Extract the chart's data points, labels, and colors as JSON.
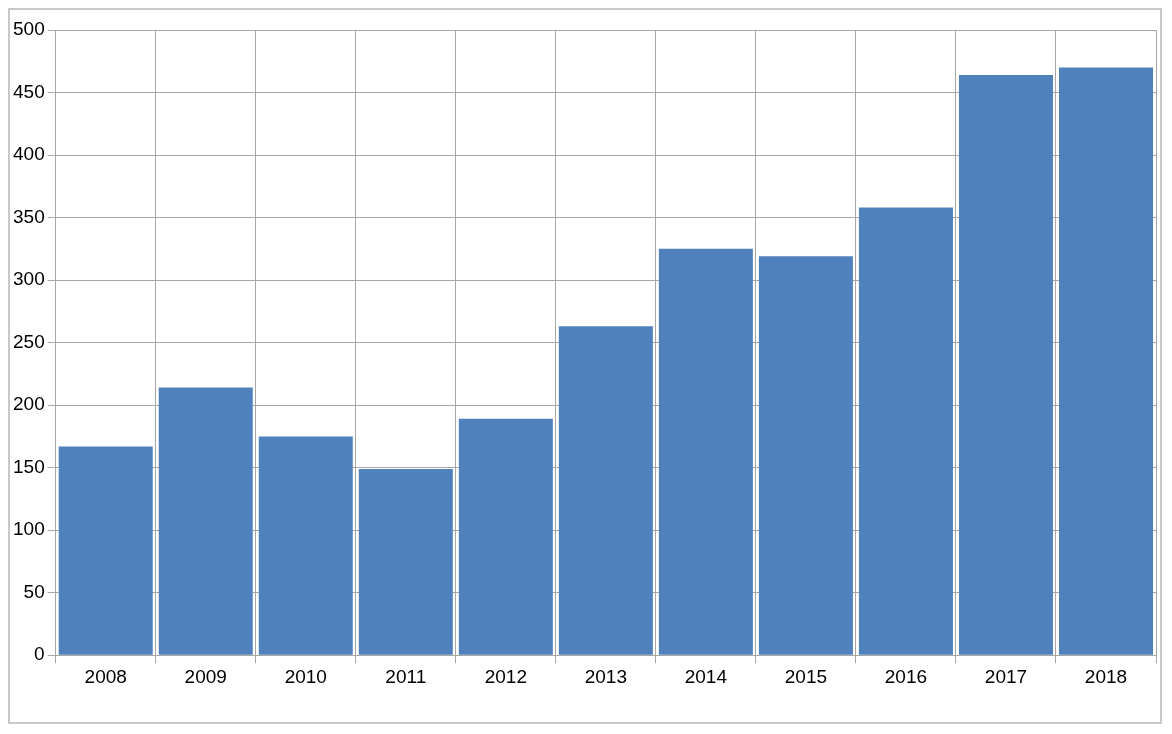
{
  "chart_data": {
    "type": "bar",
    "categories": [
      "2008",
      "2009",
      "2010",
      "2011",
      "2012",
      "2013",
      "2014",
      "2015",
      "2016",
      "2017",
      "2018"
    ],
    "values": [
      167,
      214,
      175,
      149,
      189,
      263,
      325,
      319,
      358,
      464,
      470
    ],
    "color": "#4f81bd",
    "ylim": [
      0,
      500
    ],
    "yticks": [
      0,
      50,
      100,
      150,
      200,
      250,
      300,
      350,
      400,
      450,
      500
    ],
    "grid": true
  }
}
